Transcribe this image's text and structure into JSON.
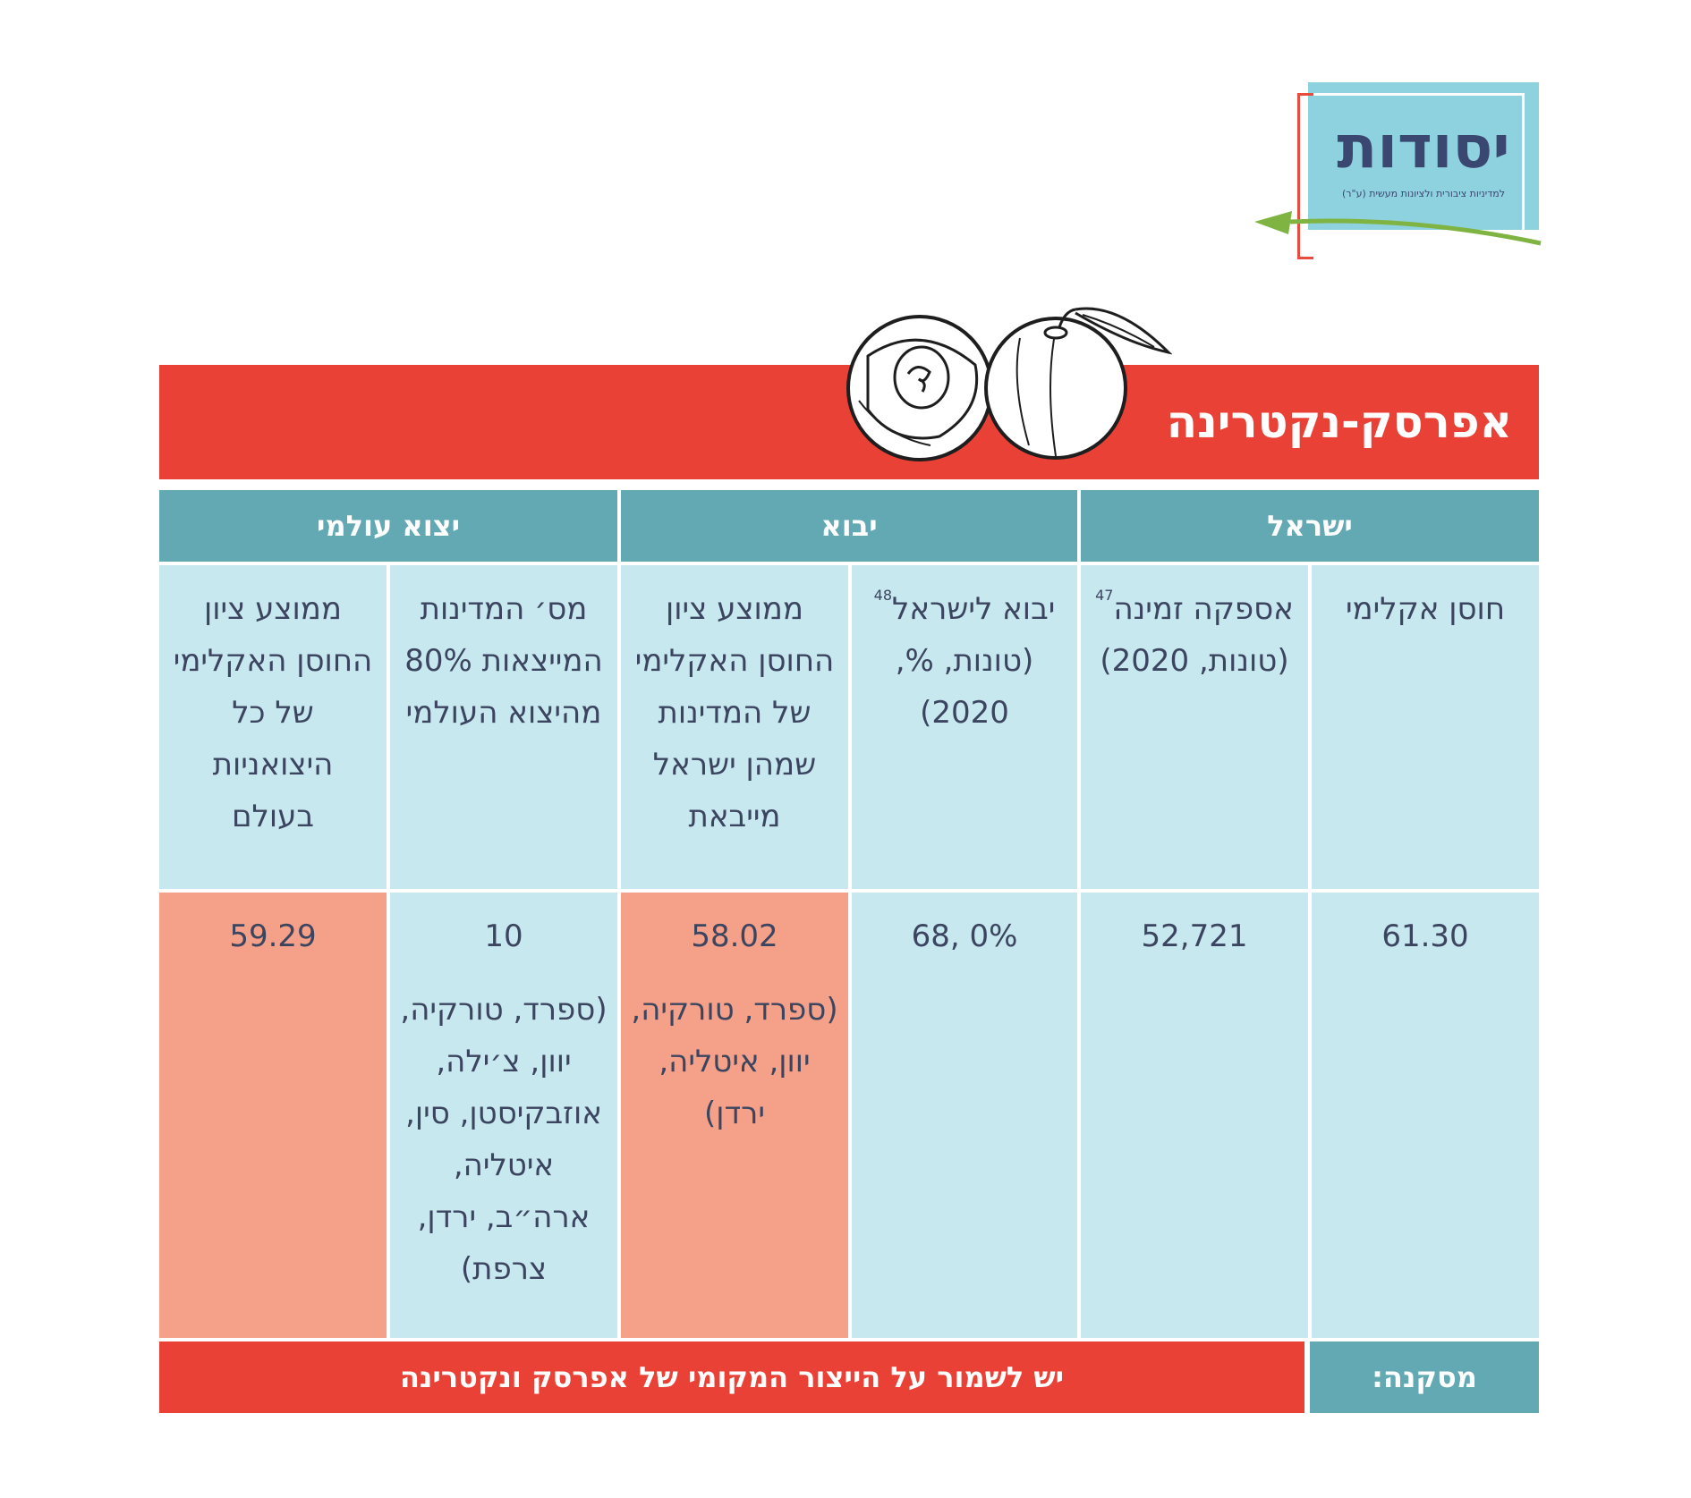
{
  "logo": {
    "name": "יסודות",
    "tagline": "למדיניות ציבורית ולציונות מעשית (ע\"ר)"
  },
  "title": "אפרסק-נקטרינה",
  "headers": {
    "israel": "ישראל",
    "import": "יבוא",
    "world_export": "יצוא עולמי"
  },
  "subheaders": {
    "climate_resilience": "חוסן אקלימי",
    "local_supply": "אספקה זמינה",
    "local_supply_ref": "47",
    "local_supply_units": "(טונות, 2020)",
    "import_to_israel": "יבוא לישראל",
    "import_to_israel_ref": "48",
    "import_to_israel_units": "(טונות, %, 2020)",
    "import_avg_index": "ממוצע ציון החוסן האקלימי של המדינות שמהן ישראל מייבאת",
    "exporters_count": "מס׳ המדינות המייצאות 80% מהיצוא העולמי",
    "world_avg_index": "ממוצע ציון החוסן האקלימי של כל היצואניות בעולם"
  },
  "values": {
    "climate_resilience": "61.30",
    "local_supply": "52,721",
    "import_to_israel": "0% ,68",
    "import_avg_index": "58.02",
    "import_countries": "(ספרד, טורקיה, יוון, איטליה, ירדן)",
    "exporters_count": "10",
    "exporter_countries": "(ספרד, טורקיה, יוון, צ׳ילה, אוזבקיסטן, סין, איטליה, ארה״ב, ירדן, צרפת)",
    "world_avg_index": "59.29"
  },
  "conclusion": {
    "label": "מסקנה:",
    "text": "יש לשמור על הייצור המקומי של אפרסק ונקטרינה"
  },
  "colors": {
    "red": "#ea4137",
    "teal": "#62a9b3",
    "light_blue": "#c8e8ef",
    "salmon": "#f5a088",
    "text": "#3c4560"
  }
}
